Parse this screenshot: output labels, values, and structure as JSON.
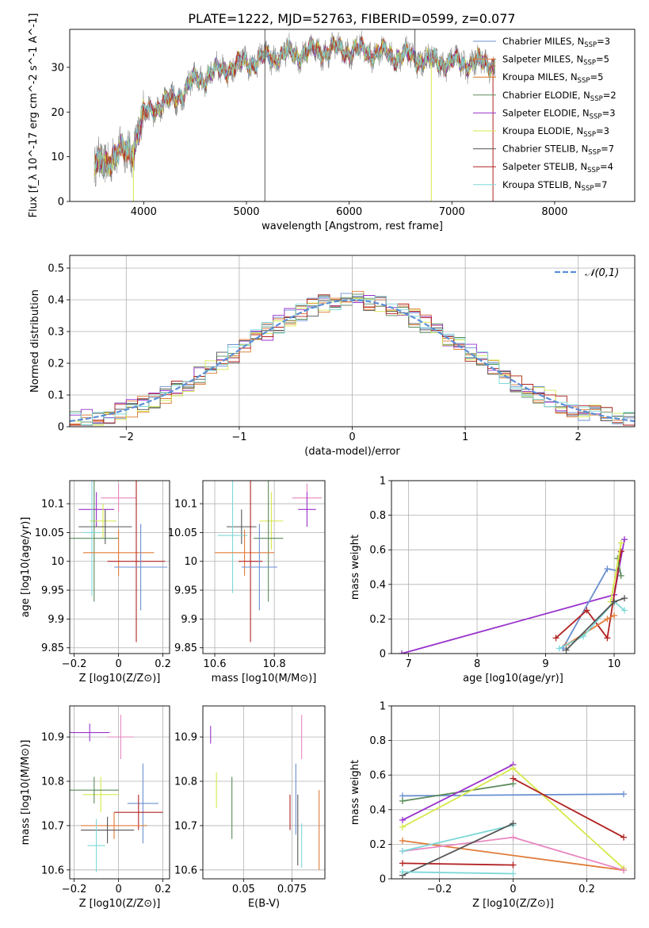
{
  "figure": {
    "title": "PLATE=1222, MJD=52763, FIBERID=0599, z=0.077"
  },
  "colors": {
    "chabrier_miles": "#6a8fd0",
    "salpeter_miles": "#e07b39",
    "kroupa_miles": "#d97428",
    "chabrier_elodie": "#5a8a5a",
    "salpeter_elodie": "#9932cc",
    "kroupa_elodie": "#d6e84a",
    "chabrier_stelib": "#555555",
    "salpeter_stelib": "#b22222",
    "kroupa_stelib": "#7fd8d8",
    "pink": "#e888c0",
    "normal_curve": "#5b8fd6"
  },
  "chart_data": [
    {
      "id": "spectrum",
      "type": "line",
      "xlabel": "wavelength [Angstrom, rest frame]",
      "ylabel": "Flux [f_λ 10^-17 erg cm^-2 s^-1 A^-1]",
      "xlim": [
        3280,
        8780
      ],
      "ylim": [
        0,
        38.5
      ],
      "xticks": [
        4000,
        5000,
        6000,
        7000,
        8000
      ],
      "yticks": [
        0,
        10,
        20,
        30
      ],
      "grid": false,
      "legend_position": "right",
      "legend": [
        {
          "model": "Chabrier MILES",
          "nssp": "3"
        },
        {
          "model": "Salpeter MILES",
          "nssp": "5"
        },
        {
          "model": "Kroupa MILES",
          "nssp": "5"
        },
        {
          "model": "Chabrier ELODIE",
          "nssp": "2"
        },
        {
          "model": "Salpeter ELODIE",
          "nssp": "3"
        },
        {
          "model": "Kroupa ELODIE",
          "nssp": "3"
        },
        {
          "model": "Chabrier STELIB",
          "nssp": "7"
        },
        {
          "model": "Salpeter STELIB",
          "nssp": "4"
        },
        {
          "model": "Kroupa STELIB",
          "nssp": "7"
        }
      ],
      "continuum": {
        "x": [
          3520,
          3700,
          3900,
          4000,
          4100,
          4200,
          4300,
          4500,
          4700,
          5000,
          5300,
          5600,
          5900,
          6200,
          6500,
          6800,
          7000,
          7200,
          7400
        ],
        "y": [
          7.5,
          10,
          12,
          19,
          21,
          22,
          23,
          27,
          29,
          31,
          32.5,
          33.5,
          34,
          33.5,
          32.5,
          31.5,
          31,
          31,
          31
        ]
      },
      "spikes": [
        {
          "x": 5180,
          "ymin": 0,
          "ymax": 38.5,
          "color_key": "chabrier_stelib"
        },
        {
          "x": 6640,
          "ymin": 30,
          "ymax": 38.5,
          "color_key": "chabrier_stelib"
        },
        {
          "x": 6800,
          "ymin": 0,
          "ymax": 31,
          "color_key": "kroupa_elodie"
        },
        {
          "x": 7400,
          "ymin": 0,
          "ymax": 31,
          "color_key": "salpeter_stelib"
        },
        {
          "x": 3900,
          "ymin": 0,
          "ymax": 12,
          "color_key": "kroupa_elodie"
        }
      ]
    },
    {
      "id": "residuals",
      "type": "line",
      "xlabel": "(data-model)/error",
      "ylabel": "Normed distribution",
      "xlim": [
        -2.5,
        2.5
      ],
      "ylim": [
        0,
        0.54
      ],
      "xticks": [
        -2,
        -1,
        0,
        1,
        2
      ],
      "yticks": [
        0.0,
        0.1,
        0.2,
        0.3,
        0.4,
        0.5
      ],
      "grid": true,
      "legend_position": "top-right",
      "legend_label": "𝒩(0,1)"
    },
    {
      "id": "age-vs-z",
      "type": "scatter",
      "xlabel": "Z [log10(Z/Z⊙)]",
      "ylabel": "age  [log10(age/yr)]",
      "xlim": [
        -0.22,
        0.23
      ],
      "ylim": [
        9.84,
        10.14
      ],
      "xticks": [
        -0.2,
        0.0,
        0.2
      ],
      "yticks": [
        9.85,
        9.9,
        9.95,
        10.0,
        10.05,
        10.1
      ],
      "grid": true,
      "points": [
        {
          "x": -0.1,
          "y": 10.09,
          "xerr": 0.08,
          "yerr": 0.03,
          "color_key": "salpeter_elodie"
        },
        {
          "x": 0.0,
          "y": 10.11,
          "xerr": 0.08,
          "yerr": 0.025,
          "color_key": "pink"
        },
        {
          "x": -0.07,
          "y": 10.07,
          "xerr": 0.06,
          "yerr": 0.03,
          "color_key": "kroupa_elodie"
        },
        {
          "x": -0.06,
          "y": 10.06,
          "xerr": 0.12,
          "yerr": 0.03,
          "color_key": "chabrier_stelib"
        },
        {
          "x": -0.11,
          "y": 10.04,
          "xerr": 0.11,
          "yerr": 0.11,
          "color_key": "chabrier_elodie"
        },
        {
          "x": -0.12,
          "y": 10.05,
          "xerr": 0.04,
          "yerr": 0.11,
          "color_key": "kroupa_stelib"
        },
        {
          "x": 0.0,
          "y": 10.015,
          "xerr": 0.16,
          "yerr": 0.04,
          "color_key": "salpeter_miles"
        },
        {
          "x": 0.08,
          "y": 10.0,
          "xerr": 0.13,
          "yerr": 0.14,
          "color_key": "salpeter_stelib"
        },
        {
          "x": 0.1,
          "y": 9.99,
          "xerr": 0.12,
          "yerr": 0.075,
          "color_key": "chabrier_miles"
        }
      ]
    },
    {
      "id": "age-vs-mass",
      "type": "scatter",
      "xlabel": "mass [log10(M/M⊙)]",
      "ylabel": "",
      "xlim": [
        10.56,
        10.97
      ],
      "ylim": [
        9.84,
        10.14
      ],
      "xticks": [
        10.6,
        10.8
      ],
      "yticks": [
        9.85,
        9.9,
        9.95,
        10.0,
        10.05,
        10.1
      ],
      "grid": true,
      "points": [
        {
          "x": 10.91,
          "y": 10.11,
          "xerr": 0.05,
          "yerr": 0.025,
          "color_key": "pink"
        },
        {
          "x": 10.91,
          "y": 10.09,
          "xerr": 0.03,
          "yerr": 0.03,
          "color_key": "salpeter_elodie"
        },
        {
          "x": 10.79,
          "y": 10.07,
          "xerr": 0.04,
          "yerr": 0.05,
          "color_key": "kroupa_elodie"
        },
        {
          "x": 10.69,
          "y": 10.06,
          "xerr": 0.05,
          "yerr": 0.03,
          "color_key": "chabrier_stelib"
        },
        {
          "x": 10.78,
          "y": 10.04,
          "xerr": 0.05,
          "yerr": 0.11,
          "color_key": "chabrier_elodie"
        },
        {
          "x": 10.66,
          "y": 10.045,
          "xerr": 0.05,
          "yerr": 0.1,
          "color_key": "kroupa_stelib"
        },
        {
          "x": 10.7,
          "y": 10.015,
          "xerr": 0.1,
          "yerr": 0.04,
          "color_key": "salpeter_miles"
        },
        {
          "x": 10.72,
          "y": 10.0,
          "xerr": 0.04,
          "yerr": 0.14,
          "color_key": "salpeter_stelib"
        },
        {
          "x": 10.75,
          "y": 9.99,
          "xerr": 0.06,
          "yerr": 0.075,
          "color_key": "chabrier_miles"
        }
      ]
    },
    {
      "id": "mass-weight-vs-age",
      "type": "line",
      "xlabel": "age  [log10(age/yr)]",
      "ylabel": "mass weight",
      "xlim": [
        6.75,
        10.3
      ],
      "ylim": [
        0,
        1.0
      ],
      "xticks": [
        7,
        8,
        9,
        10
      ],
      "yticks": [
        0.0,
        0.2,
        0.4,
        0.6,
        0.8,
        1.0
      ],
      "grid": true,
      "series": [
        {
          "color_key": "salpeter_elodie",
          "x": [
            6.9,
            10.0,
            10.15
          ],
          "y": [
            0.0,
            0.34,
            0.66
          ]
        },
        {
          "color_key": "chabrier_miles",
          "x": [
            9.25,
            9.9,
            10.05
          ],
          "y": [
            0.03,
            0.49,
            0.48
          ]
        },
        {
          "color_key": "salpeter_stelib",
          "x": [
            9.15,
            9.6,
            9.9,
            10.1
          ],
          "y": [
            0.09,
            0.25,
            0.09,
            0.59
          ]
        },
        {
          "color_key": "chabrier_elodie",
          "x": [
            10.05,
            10.1
          ],
          "y": [
            0.55,
            0.45
          ]
        },
        {
          "color_key": "kroupa_elodie",
          "x": [
            9.95,
            10.1
          ],
          "y": [
            0.3,
            0.64
          ]
        },
        {
          "color_key": "salpeter_miles",
          "x": [
            9.3,
            9.9,
            10.0
          ],
          "y": [
            0.05,
            0.2,
            0.22
          ]
        },
        {
          "color_key": "kroupa_stelib",
          "x": [
            9.2,
            9.55,
            10.0,
            10.15
          ],
          "y": [
            0.03,
            0.1,
            0.3,
            0.25
          ]
        },
        {
          "color_key": "chabrier_stelib",
          "x": [
            9.3,
            10.0,
            10.15
          ],
          "y": [
            0.02,
            0.3,
            0.32
          ]
        }
      ]
    },
    {
      "id": "mass-vs-z",
      "type": "scatter",
      "xlabel": "Z [log10(Z/Z⊙)]",
      "ylabel": "mass [log10(M/M⊙)]",
      "xlim": [
        -0.22,
        0.23
      ],
      "ylim": [
        10.58,
        10.97
      ],
      "xticks": [
        -0.2,
        0.0,
        0.2
      ],
      "yticks": [
        10.6,
        10.7,
        10.8,
        10.9
      ],
      "grid": true,
      "points": [
        {
          "x": -0.13,
          "y": 10.91,
          "xerr": 0.09,
          "yerr": 0.02,
          "color_key": "salpeter_elodie"
        },
        {
          "x": 0.01,
          "y": 10.9,
          "xerr": 0.06,
          "yerr": 0.05,
          "color_key": "pink"
        },
        {
          "x": -0.08,
          "y": 10.77,
          "xerr": 0.08,
          "yerr": 0.04,
          "color_key": "kroupa_elodie"
        },
        {
          "x": -0.11,
          "y": 10.78,
          "xerr": 0.11,
          "yerr": 0.03,
          "color_key": "chabrier_elodie"
        },
        {
          "x": 0.11,
          "y": 10.75,
          "xerr": 0.07,
          "yerr": 0.09,
          "color_key": "chabrier_miles"
        },
        {
          "x": 0.09,
          "y": 10.73,
          "xerr": 0.11,
          "yerr": 0.04,
          "color_key": "salpeter_stelib"
        },
        {
          "x": -0.02,
          "y": 10.7,
          "xerr": 0.15,
          "yerr": 0.03,
          "color_key": "salpeter_miles"
        },
        {
          "x": -0.05,
          "y": 10.69,
          "xerr": 0.12,
          "yerr": 0.03,
          "color_key": "chabrier_stelib"
        },
        {
          "x": -0.1,
          "y": 10.655,
          "xerr": 0.04,
          "yerr": 0.06,
          "color_key": "kroupa_stelib"
        }
      ]
    },
    {
      "id": "mass-vs-ebv",
      "type": "scatter",
      "xlabel": "E(B-V)",
      "ylabel": "",
      "xlim": [
        0.029,
        0.092
      ],
      "ylim": [
        10.58,
        10.97
      ],
      "xticks": [
        0.05,
        0.075
      ],
      "yticks": [
        10.6,
        10.7,
        10.8,
        10.9
      ],
      "grid": true,
      "points": [
        {
          "x": 0.033,
          "y": 10.905,
          "yerr": 0.02,
          "color_key": "salpeter_elodie"
        },
        {
          "x": 0.08,
          "y": 10.9,
          "yerr": 0.05,
          "color_key": "pink"
        },
        {
          "x": 0.036,
          "y": 10.78,
          "yerr": 0.04,
          "color_key": "kroupa_elodie"
        },
        {
          "x": 0.044,
          "y": 10.74,
          "yerr": 0.07,
          "color_key": "chabrier_elodie"
        },
        {
          "x": 0.077,
          "y": 10.76,
          "yerr": 0.08,
          "color_key": "chabrier_miles"
        },
        {
          "x": 0.074,
          "y": 10.73,
          "yerr": 0.04,
          "color_key": "salpeter_stelib"
        },
        {
          "x": 0.089,
          "y": 10.69,
          "yerr": 0.09,
          "color_key": "salpeter_miles"
        },
        {
          "x": 0.078,
          "y": 10.69,
          "yerr": 0.08,
          "color_key": "chabrier_stelib"
        },
        {
          "x": 0.08,
          "y": 10.655,
          "yerr": 0.05,
          "color_key": "kroupa_stelib"
        }
      ]
    },
    {
      "id": "mass-weight-vs-z",
      "type": "line",
      "xlabel": "Z [log10(Z/Z⊙)]",
      "ylabel": "mass weight",
      "xlim": [
        -0.33,
        0.33
      ],
      "ylim": [
        0,
        1.0
      ],
      "xticks": [
        -0.2,
        0.0,
        0.2
      ],
      "yticks": [
        0.0,
        0.2,
        0.4,
        0.6,
        0.8,
        1.0
      ],
      "grid": true,
      "series": [
        {
          "color_key": "chabrier_miles",
          "x": [
            -0.3,
            0.3
          ],
          "y": [
            0.48,
            0.49
          ]
        },
        {
          "color_key": "chabrier_elodie",
          "x": [
            -0.3,
            0.0
          ],
          "y": [
            0.45,
            0.55
          ]
        },
        {
          "color_key": "salpeter_elodie",
          "x": [
            -0.3,
            0.0
          ],
          "y": [
            0.34,
            0.66
          ]
        },
        {
          "color_key": "kroupa_elodie",
          "x": [
            -0.3,
            0.0,
            0.3
          ],
          "y": [
            0.3,
            0.64,
            0.06
          ]
        },
        {
          "color_key": "salpeter_stelib",
          "x": [
            0.0,
            0.3
          ],
          "y": [
            0.58,
            0.24
          ]
        },
        {
          "color_key": "salpeter_stelib",
          "x": [
            -0.3,
            0.0
          ],
          "y": [
            0.09,
            0.08
          ]
        },
        {
          "color_key": "salpeter_miles",
          "x": [
            -0.3,
            0.3
          ],
          "y": [
            0.22,
            0.05
          ]
        },
        {
          "color_key": "pink",
          "x": [
            -0.3,
            0.0,
            0.3
          ],
          "y": [
            0.16,
            0.24,
            0.05
          ]
        },
        {
          "color_key": "kroupa_stelib",
          "x": [
            -0.3,
            0.0
          ],
          "y": [
            0.16,
            0.31
          ]
        },
        {
          "color_key": "chabrier_stelib",
          "x": [
            -0.3,
            0.0
          ],
          "y": [
            0.02,
            0.32
          ]
        },
        {
          "color_key": "kroupa_stelib",
          "x": [
            -0.3,
            0.0
          ],
          "y": [
            0.04,
            0.03
          ]
        }
      ]
    }
  ]
}
